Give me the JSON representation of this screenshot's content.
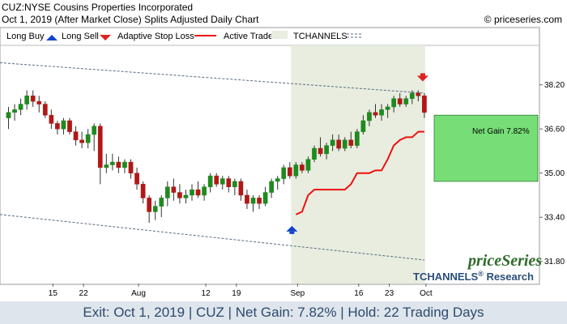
{
  "header": {
    "line1": "CUZ:NYSE Cousins Properties Incorporated",
    "line2": "Oct 1, 2019 (After Market Close)  Splits Adjusted Daily Chart",
    "copyright": "© priceseries.com"
  },
  "legend": {
    "long_buy": "Long Buy",
    "long_sell": "Long Sell",
    "stop_loss": "Adaptive Stop Loss",
    "active_trade": "Active Trade",
    "tchannels": "TCHANNELS"
  },
  "branding": {
    "name": "priceSeries",
    "tchannels": "TCHANNELS",
    "reg": "®",
    "research": "Research"
  },
  "trade": {
    "net_gain_label": "Net Gain 7.82%"
  },
  "footer": {
    "text": "Exit: Oct 1, 2019 | CUZ | Net Gain: 7.82% | Hold: 22 Trading Days"
  },
  "colors": {
    "up": "#1f8a1f",
    "down": "#b01818",
    "stop": "#ee1111",
    "active": "#e8eddf",
    "gain": "#77dd77",
    "channel": "#5a6a80",
    "buy": "#1144cc",
    "sell": "#dd2222"
  },
  "chart_data": {
    "type": "candlestick",
    "ylim": [
      31.0,
      39.6
    ],
    "y_ticks": [
      31.8,
      33.4,
      35.0,
      36.6,
      38.2
    ],
    "x_tick_labels": [
      "15",
      "22",
      "Aug",
      "12",
      "19",
      "Sep",
      "16",
      "23",
      "Oct"
    ],
    "x_tick_index": [
      7,
      12,
      21,
      32,
      37,
      47,
      57,
      62,
      68
    ],
    "candles": [
      {
        "o": 37.0,
        "h": 37.4,
        "l": 36.6,
        "c": 37.2
      },
      {
        "o": 37.2,
        "h": 37.5,
        "l": 36.9,
        "c": 37.3
      },
      {
        "o": 37.3,
        "h": 37.7,
        "l": 37.1,
        "c": 37.5
      },
      {
        "o": 37.5,
        "h": 38.0,
        "l": 37.3,
        "c": 37.8
      },
      {
        "o": 37.8,
        "h": 38.0,
        "l": 37.4,
        "c": 37.6
      },
      {
        "o": 37.6,
        "h": 37.8,
        "l": 37.2,
        "c": 37.5
      },
      {
        "o": 37.5,
        "h": 37.6,
        "l": 37.0,
        "c": 37.1
      },
      {
        "o": 37.1,
        "h": 37.3,
        "l": 36.6,
        "c": 36.8
      },
      {
        "o": 36.8,
        "h": 36.9,
        "l": 36.4,
        "c": 36.6
      },
      {
        "o": 36.6,
        "h": 37.0,
        "l": 36.4,
        "c": 36.9
      },
      {
        "o": 36.9,
        "h": 37.0,
        "l": 36.4,
        "c": 36.5
      },
      {
        "o": 36.5,
        "h": 36.7,
        "l": 36.0,
        "c": 36.2
      },
      {
        "o": 36.2,
        "h": 36.5,
        "l": 35.9,
        "c": 36.1
      },
      {
        "o": 36.1,
        "h": 36.6,
        "l": 35.9,
        "c": 36.4
      },
      {
        "o": 36.4,
        "h": 36.8,
        "l": 35.8,
        "c": 36.7
      },
      {
        "o": 36.7,
        "h": 36.8,
        "l": 34.6,
        "c": 35.2
      },
      {
        "o": 35.2,
        "h": 35.7,
        "l": 35.0,
        "c": 35.3
      },
      {
        "o": 35.3,
        "h": 35.7,
        "l": 35.1,
        "c": 35.4
      },
      {
        "o": 35.4,
        "h": 35.6,
        "l": 35.0,
        "c": 35.2
      },
      {
        "o": 35.2,
        "h": 35.5,
        "l": 35.0,
        "c": 35.4
      },
      {
        "o": 35.4,
        "h": 35.5,
        "l": 34.8,
        "c": 35.0
      },
      {
        "o": 35.0,
        "h": 35.2,
        "l": 34.4,
        "c": 34.6
      },
      {
        "o": 34.6,
        "h": 34.7,
        "l": 33.9,
        "c": 34.1
      },
      {
        "o": 34.1,
        "h": 34.2,
        "l": 33.2,
        "c": 33.6
      },
      {
        "o": 33.6,
        "h": 34.0,
        "l": 33.3,
        "c": 33.8
      },
      {
        "o": 33.8,
        "h": 34.2,
        "l": 33.4,
        "c": 34.1
      },
      {
        "o": 34.1,
        "h": 34.7,
        "l": 33.8,
        "c": 34.5
      },
      {
        "o": 34.5,
        "h": 34.8,
        "l": 34.0,
        "c": 34.3
      },
      {
        "o": 34.3,
        "h": 34.6,
        "l": 33.9,
        "c": 34.1
      },
      {
        "o": 34.1,
        "h": 34.4,
        "l": 33.9,
        "c": 34.2
      },
      {
        "o": 34.2,
        "h": 34.6,
        "l": 34.0,
        "c": 34.4
      },
      {
        "o": 34.4,
        "h": 34.7,
        "l": 34.1,
        "c": 34.2
      },
      {
        "o": 34.2,
        "h": 34.6,
        "l": 34.0,
        "c": 34.5
      },
      {
        "o": 34.5,
        "h": 35.0,
        "l": 34.3,
        "c": 34.9
      },
      {
        "o": 34.9,
        "h": 35.0,
        "l": 34.5,
        "c": 34.6
      },
      {
        "o": 34.6,
        "h": 34.9,
        "l": 34.4,
        "c": 34.8
      },
      {
        "o": 34.8,
        "h": 34.9,
        "l": 34.3,
        "c": 34.5
      },
      {
        "o": 34.5,
        "h": 34.8,
        "l": 34.2,
        "c": 34.7
      },
      {
        "o": 34.7,
        "h": 34.8,
        "l": 34.0,
        "c": 34.2
      },
      {
        "o": 34.2,
        "h": 34.4,
        "l": 33.7,
        "c": 33.9
      },
      {
        "o": 33.9,
        "h": 34.2,
        "l": 33.6,
        "c": 34.1
      },
      {
        "o": 34.1,
        "h": 34.2,
        "l": 33.7,
        "c": 33.9
      },
      {
        "o": 33.9,
        "h": 34.5,
        "l": 33.8,
        "c": 34.3
      },
      {
        "o": 34.3,
        "h": 34.8,
        "l": 34.1,
        "c": 34.7
      },
      {
        "o": 34.7,
        "h": 34.9,
        "l": 34.4,
        "c": 34.8
      },
      {
        "o": 34.8,
        "h": 35.3,
        "l": 34.6,
        "c": 35.2
      },
      {
        "o": 35.2,
        "h": 35.4,
        "l": 34.8,
        "c": 34.9
      },
      {
        "o": 34.9,
        "h": 35.4,
        "l": 34.8,
        "c": 35.3
      },
      {
        "o": 35.3,
        "h": 35.4,
        "l": 35.0,
        "c": 35.1
      },
      {
        "o": 35.1,
        "h": 35.6,
        "l": 35.0,
        "c": 35.5
      },
      {
        "o": 35.5,
        "h": 36.0,
        "l": 35.4,
        "c": 35.9
      },
      {
        "o": 35.9,
        "h": 36.3,
        "l": 35.6,
        "c": 35.7
      },
      {
        "o": 35.7,
        "h": 36.1,
        "l": 35.5,
        "c": 36.0
      },
      {
        "o": 36.0,
        "h": 36.4,
        "l": 35.8,
        "c": 36.2
      },
      {
        "o": 36.2,
        "h": 36.4,
        "l": 35.8,
        "c": 35.9
      },
      {
        "o": 35.9,
        "h": 36.3,
        "l": 35.8,
        "c": 36.2
      },
      {
        "o": 36.2,
        "h": 36.5,
        "l": 35.9,
        "c": 36.0
      },
      {
        "o": 36.0,
        "h": 36.6,
        "l": 35.9,
        "c": 36.5
      },
      {
        "o": 36.5,
        "h": 37.1,
        "l": 36.4,
        "c": 36.9
      },
      {
        "o": 36.9,
        "h": 37.3,
        "l": 36.7,
        "c": 37.2
      },
      {
        "o": 37.2,
        "h": 37.5,
        "l": 37.0,
        "c": 37.1
      },
      {
        "o": 37.1,
        "h": 37.5,
        "l": 36.9,
        "c": 37.3
      },
      {
        "o": 37.3,
        "h": 37.5,
        "l": 37.0,
        "c": 37.4
      },
      {
        "o": 37.4,
        "h": 37.8,
        "l": 37.2,
        "c": 37.7
      },
      {
        "o": 37.7,
        "h": 37.9,
        "l": 37.4,
        "c": 37.5
      },
      {
        "o": 37.5,
        "h": 37.8,
        "l": 37.4,
        "c": 37.7
      },
      {
        "o": 37.7,
        "h": 38.0,
        "l": 37.5,
        "c": 37.9
      },
      {
        "o": 37.9,
        "h": 38.0,
        "l": 37.6,
        "c": 37.8
      },
      {
        "o": 37.8,
        "h": 37.9,
        "l": 37.0,
        "c": 37.2
      }
    ],
    "stop_loss": {
      "start_index": 47,
      "values": [
        33.5,
        33.6,
        34.2,
        34.4,
        34.4,
        34.4,
        34.4,
        34.4,
        34.4,
        34.6,
        35.0,
        35.0,
        35.0,
        35.1,
        35.1,
        35.5,
        36.0,
        36.2,
        36.3,
        36.3,
        36.5,
        36.5
      ]
    },
    "channel": {
      "upper": [
        {
          "i": 0,
          "v": 39.0
        },
        {
          "i": 68,
          "v": 37.9
        }
      ],
      "lower": [
        {
          "i": 0,
          "v": 33.5
        },
        {
          "i": 68,
          "v": 31.85
        }
      ]
    },
    "buy": {
      "index": 47,
      "price": 33.0
    },
    "sell": {
      "index": 68,
      "price": 38.5
    },
    "active_range": [
      47,
      68
    ],
    "gain_box": {
      "low": 34.7,
      "high": 37.1
    }
  }
}
